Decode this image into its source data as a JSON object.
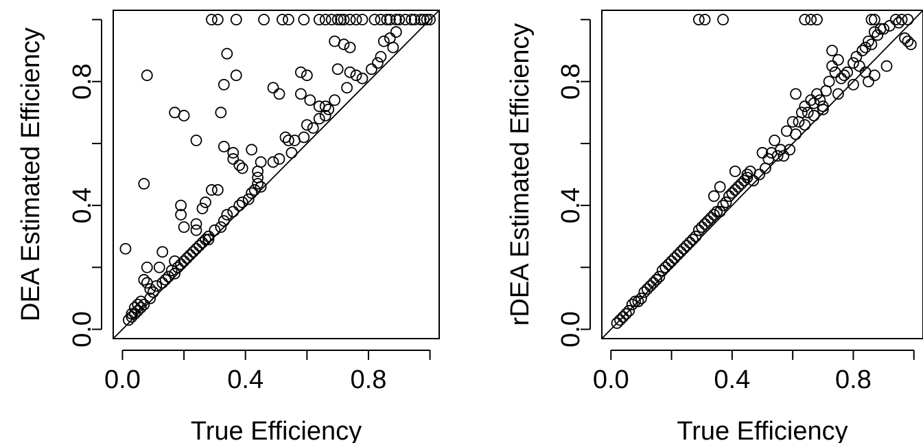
{
  "chart_data": [
    {
      "type": "scatter",
      "xlabel": "True Efficiency",
      "ylabel": "DEA Estimated Efficiency",
      "xlim": [
        -0.03,
        1.03
      ],
      "ylim": [
        -0.03,
        1.03
      ],
      "xticks": [
        "0.0",
        "0.4",
        "0.8"
      ],
      "yticks": [
        "0.0",
        "0.4",
        "0.8"
      ],
      "xtick_values": [
        0,
        0.2,
        0.4,
        0.6,
        0.8,
        1.0
      ],
      "ytick_values": [
        0,
        0.2,
        0.4,
        0.6,
        0.8,
        1.0
      ],
      "label_every": 2,
      "reference_line": "y = x",
      "grid": false,
      "points": [
        [
          0.29,
          1.0
        ],
        [
          0.31,
          1.0
        ],
        [
          0.37,
          1.0
        ],
        [
          0.46,
          1.0
        ],
        [
          0.52,
          1.0
        ],
        [
          0.54,
          1.0
        ],
        [
          0.59,
          1.0
        ],
        [
          0.64,
          1.0
        ],
        [
          0.66,
          1.0
        ],
        [
          0.68,
          1.0
        ],
        [
          0.7,
          1.0
        ],
        [
          0.71,
          1.0
        ],
        [
          0.72,
          1.0
        ],
        [
          0.74,
          1.0
        ],
        [
          0.76,
          1.0
        ],
        [
          0.78,
          1.0
        ],
        [
          0.82,
          1.0
        ],
        [
          0.84,
          1.0
        ],
        [
          0.86,
          1.0
        ],
        [
          0.87,
          1.0
        ],
        [
          0.89,
          1.0
        ],
        [
          0.9,
          1.0
        ],
        [
          0.92,
          1.0
        ],
        [
          0.94,
          1.0
        ],
        [
          0.95,
          1.0
        ],
        [
          0.97,
          1.0
        ],
        [
          0.98,
          1.0
        ],
        [
          0.99,
          1.0
        ],
        [
          1.0,
          1.0
        ],
        [
          0.08,
          0.82
        ],
        [
          0.17,
          0.7
        ],
        [
          0.2,
          0.69
        ],
        [
          0.07,
          0.47
        ],
        [
          0.01,
          0.26
        ],
        [
          0.24,
          0.61
        ],
        [
          0.32,
          0.7
        ],
        [
          0.34,
          0.89
        ],
        [
          0.37,
          0.82
        ],
        [
          0.33,
          0.79
        ],
        [
          0.33,
          0.59
        ],
        [
          0.36,
          0.55
        ],
        [
          0.36,
          0.57
        ],
        [
          0.38,
          0.53
        ],
        [
          0.39,
          0.52
        ],
        [
          0.42,
          0.58
        ],
        [
          0.45,
          0.54
        ],
        [
          0.44,
          0.51
        ],
        [
          0.44,
          0.49
        ],
        [
          0.29,
          0.45
        ],
        [
          0.31,
          0.45
        ],
        [
          0.27,
          0.41
        ],
        [
          0.19,
          0.4
        ],
        [
          0.19,
          0.37
        ],
        [
          0.2,
          0.33
        ],
        [
          0.24,
          0.34
        ],
        [
          0.24,
          0.32
        ],
        [
          0.26,
          0.39
        ],
        [
          0.49,
          0.78
        ],
        [
          0.51,
          0.76
        ],
        [
          0.58,
          0.83
        ],
        [
          0.6,
          0.82
        ],
        [
          0.61,
          0.74
        ],
        [
          0.58,
          0.76
        ],
        [
          0.64,
          0.72
        ],
        [
          0.66,
          0.72
        ],
        [
          0.67,
          0.71
        ],
        [
          0.69,
          0.74
        ],
        [
          0.7,
          0.84
        ],
        [
          0.69,
          0.93
        ],
        [
          0.72,
          0.92
        ],
        [
          0.74,
          0.91
        ],
        [
          0.74,
          0.83
        ],
        [
          0.76,
          0.82
        ],
        [
          0.78,
          0.81
        ],
        [
          0.81,
          0.84
        ],
        [
          0.83,
          0.86
        ],
        [
          0.84,
          0.88
        ],
        [
          0.85,
          0.93
        ],
        [
          0.87,
          0.94
        ],
        [
          0.88,
          0.91
        ],
        [
          0.89,
          0.96
        ],
        [
          0.73,
          0.78
        ],
        [
          0.53,
          0.62
        ],
        [
          0.54,
          0.61
        ],
        [
          0.56,
          0.61
        ],
        [
          0.51,
          0.55
        ],
        [
          0.49,
          0.54
        ],
        [
          0.55,
          0.57
        ],
        [
          0.59,
          0.62
        ],
        [
          0.6,
          0.66
        ],
        [
          0.62,
          0.65
        ],
        [
          0.64,
          0.68
        ],
        [
          0.66,
          0.69
        ],
        [
          0.38,
          0.4
        ],
        [
          0.39,
          0.41
        ],
        [
          0.41,
          0.42
        ],
        [
          0.42,
          0.44
        ],
        [
          0.43,
          0.45
        ],
        [
          0.44,
          0.47
        ],
        [
          0.45,
          0.46
        ],
        [
          0.34,
          0.37
        ],
        [
          0.33,
          0.35
        ],
        [
          0.3,
          0.32
        ],
        [
          0.28,
          0.3
        ],
        [
          0.27,
          0.29
        ],
        [
          0.26,
          0.28
        ],
        [
          0.25,
          0.27
        ],
        [
          0.24,
          0.26
        ],
        [
          0.23,
          0.25
        ],
        [
          0.22,
          0.24
        ],
        [
          0.21,
          0.23
        ],
        [
          0.2,
          0.22
        ],
        [
          0.18,
          0.2
        ],
        [
          0.17,
          0.22
        ],
        [
          0.16,
          0.19
        ],
        [
          0.15,
          0.17
        ],
        [
          0.14,
          0.16
        ],
        [
          0.13,
          0.25
        ],
        [
          0.12,
          0.2
        ],
        [
          0.11,
          0.14
        ],
        [
          0.1,
          0.12
        ],
        [
          0.09,
          0.13
        ],
        [
          0.08,
          0.2
        ],
        [
          0.07,
          0.16
        ],
        [
          0.08,
          0.15
        ],
        [
          0.06,
          0.09
        ],
        [
          0.05,
          0.08
        ],
        [
          0.05,
          0.06
        ],
        [
          0.04,
          0.07
        ],
        [
          0.03,
          0.05
        ],
        [
          0.03,
          0.04
        ],
        [
          0.02,
          0.03
        ],
        [
          0.04,
          0.05
        ],
        [
          0.06,
          0.07
        ],
        [
          0.07,
          0.08
        ],
        [
          0.09,
          0.1
        ],
        [
          0.13,
          0.15
        ],
        [
          0.17,
          0.18
        ],
        [
          0.19,
          0.21
        ],
        [
          0.28,
          0.29
        ],
        [
          0.32,
          0.33
        ],
        [
          0.36,
          0.38
        ]
      ]
    },
    {
      "type": "scatter",
      "xlabel": "True Efficiency",
      "ylabel": "rDEA Estimated Efficiency",
      "xlim": [
        -0.03,
        1.03
      ],
      "ylim": [
        -0.03,
        1.03
      ],
      "xticks": [
        "0.0",
        "0.4",
        "0.8"
      ],
      "yticks": [
        "0.0",
        "0.4",
        "0.8"
      ],
      "xtick_values": [
        0,
        0.2,
        0.4,
        0.6,
        0.8,
        1.0
      ],
      "ytick_values": [
        0,
        0.2,
        0.4,
        0.6,
        0.8,
        1.0
      ],
      "label_every": 2,
      "reference_line": "y = x",
      "grid": false,
      "points": [
        [
          0.29,
          1.0
        ],
        [
          0.31,
          1.0
        ],
        [
          0.37,
          1.0
        ],
        [
          0.64,
          1.0
        ],
        [
          0.66,
          1.0
        ],
        [
          0.68,
          1.0
        ],
        [
          0.86,
          1.0
        ],
        [
          0.87,
          1.0
        ],
        [
          0.94,
          1.0
        ],
        [
          0.96,
          1.0
        ],
        [
          0.98,
          1.0
        ],
        [
          0.02,
          0.02
        ],
        [
          0.03,
          0.03
        ],
        [
          0.04,
          0.04
        ],
        [
          0.05,
          0.05
        ],
        [
          0.06,
          0.06
        ],
        [
          0.07,
          0.08
        ],
        [
          0.08,
          0.09
        ],
        [
          0.09,
          0.09
        ],
        [
          0.1,
          0.1
        ],
        [
          0.11,
          0.12
        ],
        [
          0.12,
          0.13
        ],
        [
          0.13,
          0.14
        ],
        [
          0.14,
          0.15
        ],
        [
          0.15,
          0.16
        ],
        [
          0.16,
          0.17
        ],
        [
          0.17,
          0.19
        ],
        [
          0.18,
          0.2
        ],
        [
          0.19,
          0.21
        ],
        [
          0.2,
          0.22
        ],
        [
          0.21,
          0.23
        ],
        [
          0.22,
          0.24
        ],
        [
          0.23,
          0.25
        ],
        [
          0.24,
          0.26
        ],
        [
          0.25,
          0.27
        ],
        [
          0.26,
          0.28
        ],
        [
          0.27,
          0.29
        ],
        [
          0.28,
          0.3
        ],
        [
          0.29,
          0.32
        ],
        [
          0.3,
          0.33
        ],
        [
          0.31,
          0.34
        ],
        [
          0.32,
          0.35
        ],
        [
          0.33,
          0.36
        ],
        [
          0.34,
          0.37
        ],
        [
          0.35,
          0.38
        ],
        [
          0.36,
          0.38
        ],
        [
          0.37,
          0.4
        ],
        [
          0.38,
          0.41
        ],
        [
          0.39,
          0.43
        ],
        [
          0.4,
          0.44
        ],
        [
          0.41,
          0.45
        ],
        [
          0.42,
          0.46
        ],
        [
          0.43,
          0.47
        ],
        [
          0.44,
          0.48
        ],
        [
          0.45,
          0.5
        ],
        [
          0.46,
          0.51
        ],
        [
          0.34,
          0.43
        ],
        [
          0.36,
          0.46
        ],
        [
          0.41,
          0.51
        ],
        [
          0.45,
          0.49
        ],
        [
          0.5,
          0.57
        ],
        [
          0.52,
          0.55
        ],
        [
          0.53,
          0.57
        ],
        [
          0.54,
          0.61
        ],
        [
          0.56,
          0.58
        ],
        [
          0.58,
          0.64
        ],
        [
          0.6,
          0.67
        ],
        [
          0.61,
          0.63
        ],
        [
          0.62,
          0.67
        ],
        [
          0.63,
          0.7
        ],
        [
          0.64,
          0.72
        ],
        [
          0.65,
          0.7
        ],
        [
          0.66,
          0.74
        ],
        [
          0.67,
          0.73
        ],
        [
          0.68,
          0.76
        ],
        [
          0.69,
          0.74
        ],
        [
          0.7,
          0.72
        ],
        [
          0.71,
          0.77
        ],
        [
          0.72,
          0.8
        ],
        [
          0.73,
          0.85
        ],
        [
          0.74,
          0.83
        ],
        [
          0.75,
          0.87
        ],
        [
          0.76,
          0.81
        ],
        [
          0.77,
          0.82
        ],
        [
          0.78,
          0.83
        ],
        [
          0.8,
          0.86
        ],
        [
          0.81,
          0.88
        ],
        [
          0.82,
          0.85
        ],
        [
          0.83,
          0.9
        ],
        [
          0.84,
          0.91
        ],
        [
          0.85,
          0.93
        ],
        [
          0.86,
          0.92
        ],
        [
          0.87,
          0.96
        ],
        [
          0.88,
          0.95
        ],
        [
          0.89,
          0.97
        ],
        [
          0.9,
          0.97
        ],
        [
          0.91,
          0.85
        ],
        [
          0.92,
          0.98
        ],
        [
          0.95,
          0.99
        ],
        [
          0.97,
          0.94
        ],
        [
          0.98,
          0.93
        ],
        [
          0.99,
          0.92
        ],
        [
          0.61,
          0.76
        ],
        [
          0.73,
          0.9
        ],
        [
          0.57,
          0.56
        ],
        [
          0.59,
          0.58
        ],
        [
          0.47,
          0.48
        ],
        [
          0.49,
          0.5
        ],
        [
          0.51,
          0.52
        ],
        [
          0.55,
          0.56
        ],
        [
          0.64,
          0.66
        ],
        [
          0.67,
          0.69
        ],
        [
          0.7,
          0.71
        ],
        [
          0.75,
          0.76
        ],
        [
          0.8,
          0.79
        ],
        [
          0.84,
          0.83
        ],
        [
          0.85,
          0.8
        ],
        [
          0.87,
          0.82
        ]
      ]
    }
  ]
}
